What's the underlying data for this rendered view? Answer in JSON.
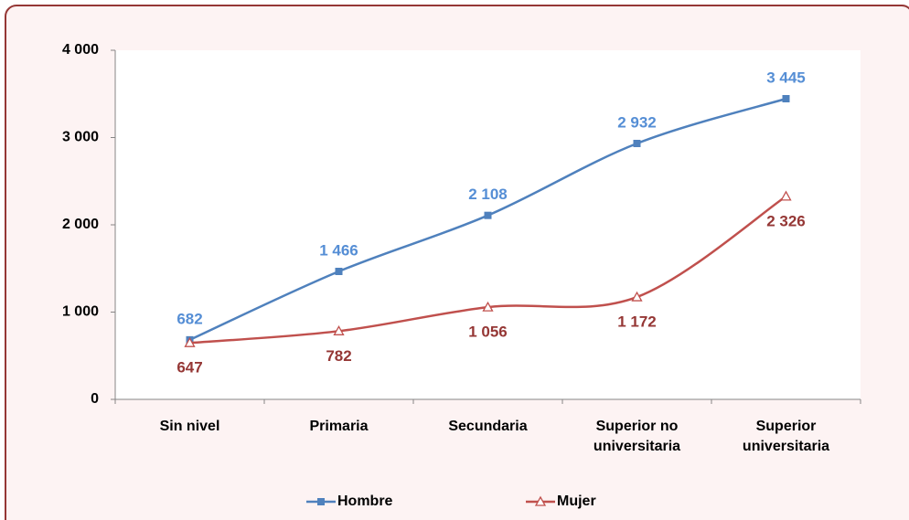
{
  "chart_data": {
    "type": "line",
    "categories": [
      "Sin nivel",
      "Primaria",
      "Secundaria",
      "Superior no universitaria",
      "Superior universitaria"
    ],
    "series": [
      {
        "name": "Hombre",
        "color": "#4f81bd",
        "label_color": "#558ed5",
        "marker": "square",
        "values": [
          682,
          1466,
          2108,
          2932,
          3445
        ],
        "value_labels": [
          "682",
          "1 466",
          "2 108",
          "2 932",
          "3 445"
        ]
      },
      {
        "name": "Mujer",
        "color": "#c0504d",
        "label_color": "#953735",
        "marker": "triangle",
        "values": [
          647,
          782,
          1056,
          1172,
          2326
        ],
        "value_labels": [
          "647",
          "782",
          "1 056",
          "1 172",
          "2 326"
        ]
      }
    ],
    "ylim": [
      0,
      4000
    ],
    "yticks": [
      0,
      {
        "value": 1000,
        "label": "1 000"
      },
      {
        "value": 2000,
        "label": "2 000"
      },
      {
        "value": 3000,
        "label": "3 000"
      },
      {
        "value": 4000,
        "label": "4 000"
      }
    ],
    "grid": false,
    "smooth": true,
    "legend": "bottom"
  }
}
